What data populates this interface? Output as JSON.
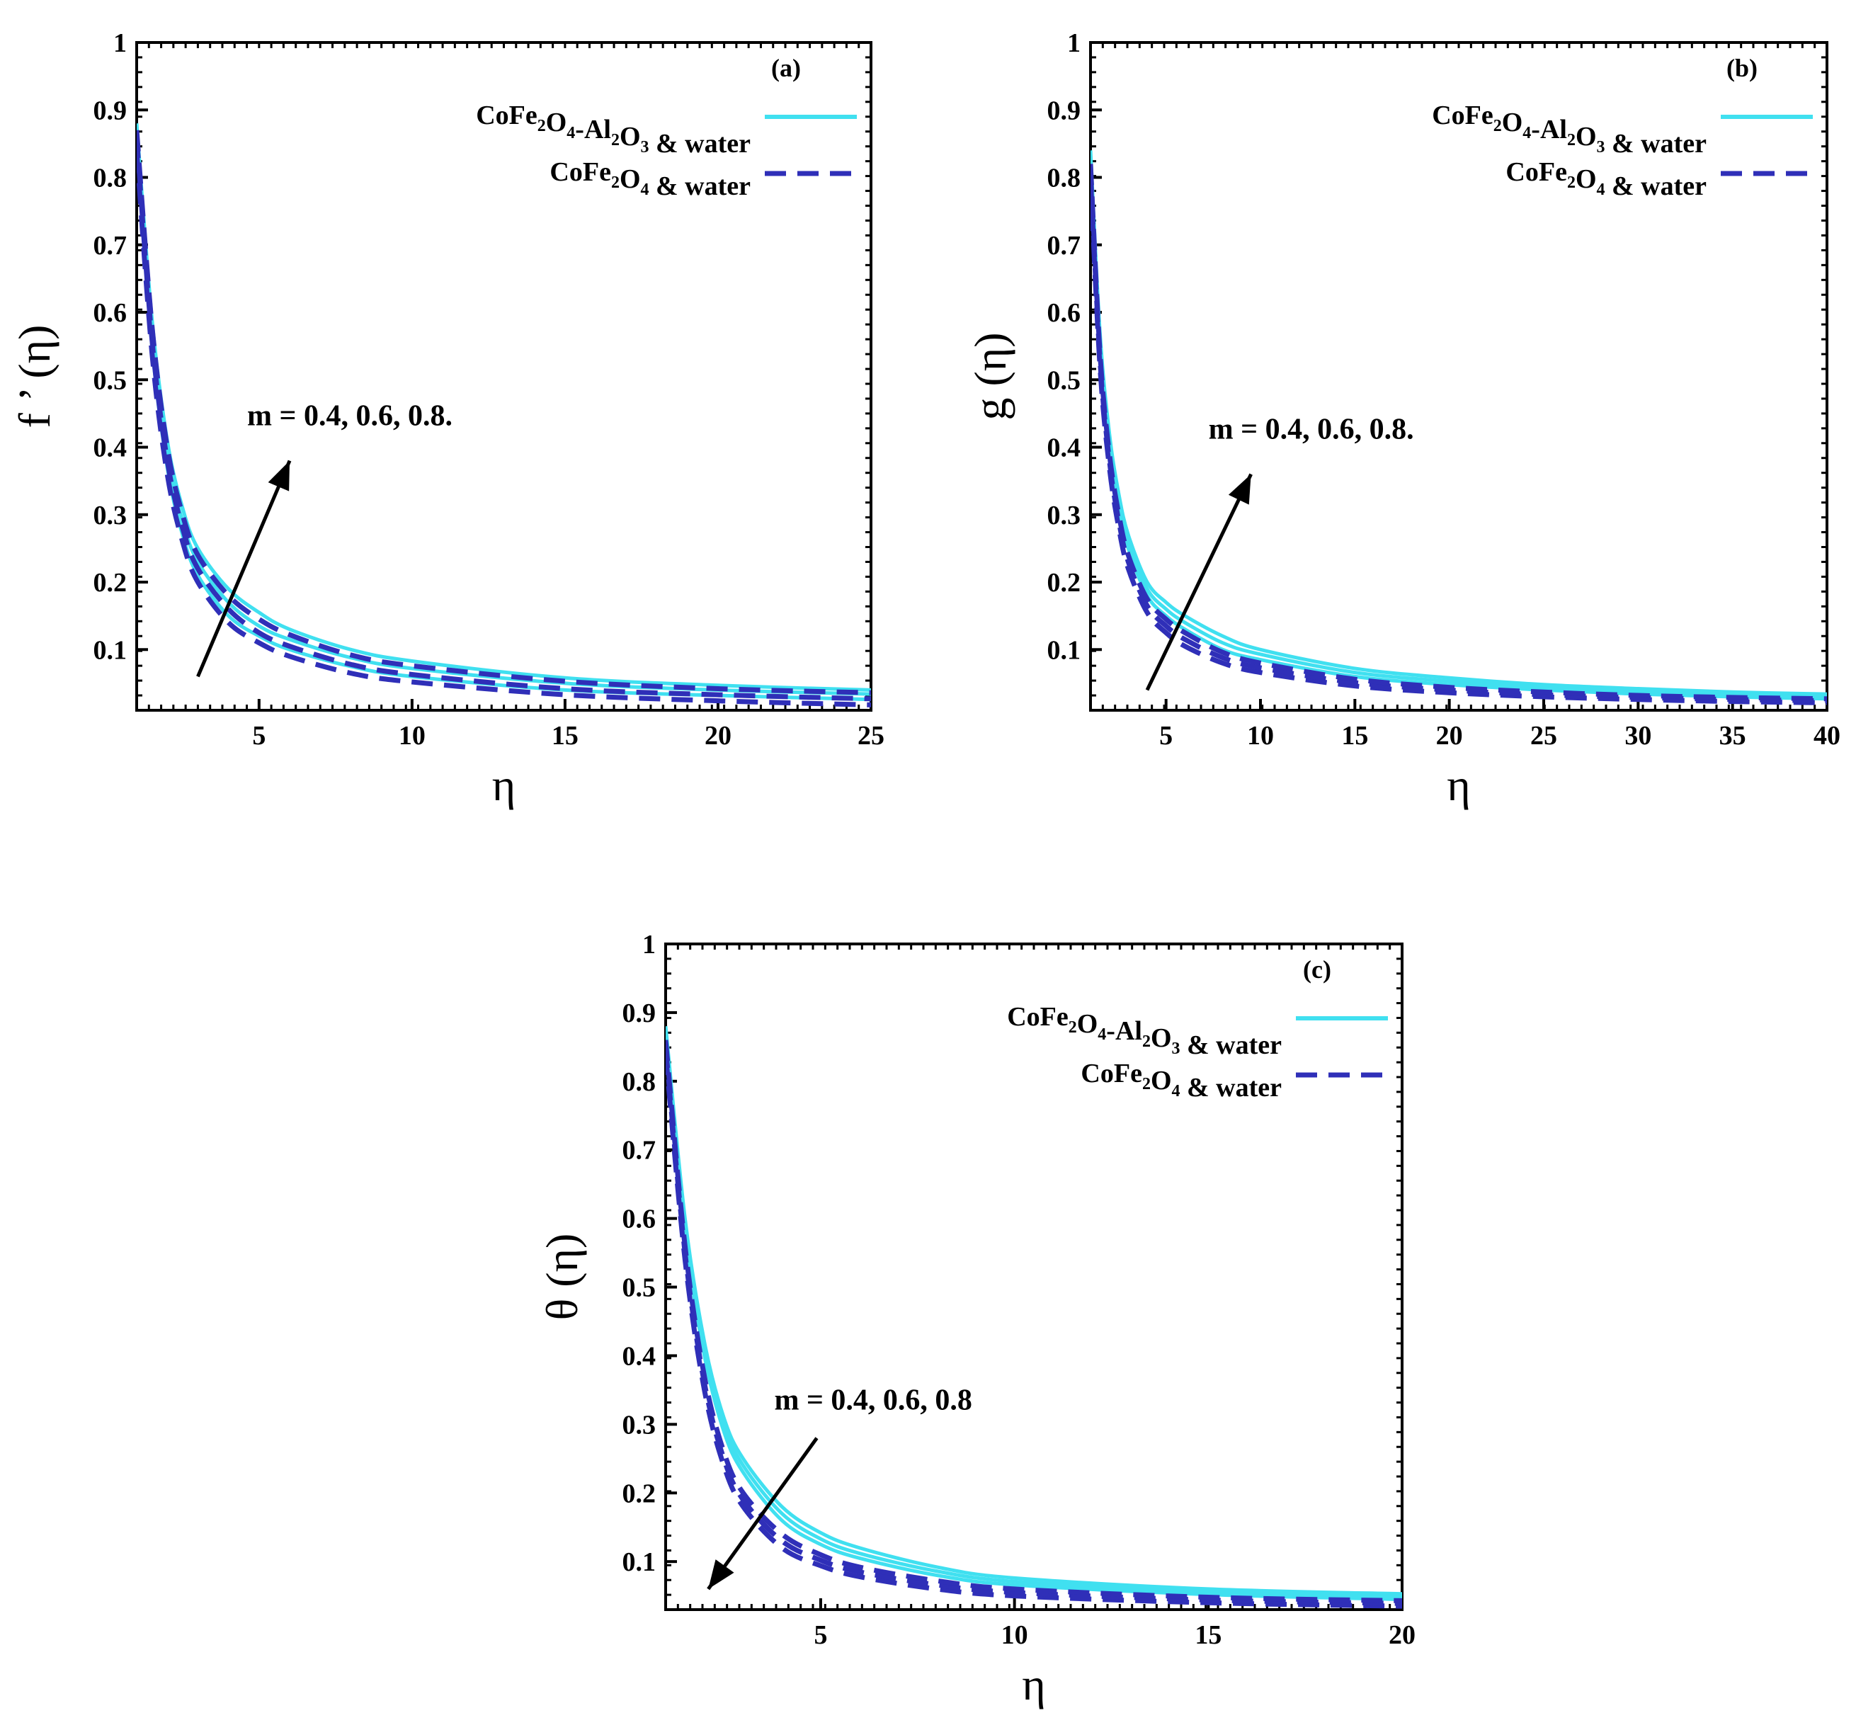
{
  "colors": {
    "hybrid": "#40e0f0",
    "mono": "#2f2fb8",
    "axis": "#000000"
  },
  "chart_data": [
    {
      "type": "line",
      "tag": "(a)",
      "xlabel": "η",
      "ylabel": "f ’ (η)",
      "xlim": [
        1,
        25
      ],
      "ylim": [
        0.01,
        1
      ],
      "xticks": [
        5,
        10,
        15,
        20,
        25
      ],
      "yticks": [
        0.1,
        0.2,
        0.3,
        0.4,
        0.5,
        0.6,
        0.7,
        0.8,
        0.9,
        1
      ],
      "grid": false,
      "legend_position": "top-right",
      "legend": [
        {
          "label": "CoFe",
          "sub1": "2",
          "mid1": "O",
          "sub2": "4",
          "tail": "-Al",
          "sub3": "2",
          "mid3": "O",
          "sub4": "3",
          "end": " & water",
          "style": "solid"
        },
        {
          "label": "CoFe",
          "sub1": "2",
          "mid1": "O",
          "sub2": "4",
          "tail": "",
          "sub3": "",
          "mid3": "",
          "sub4": "",
          "end": " & water",
          "style": "dashed"
        }
      ],
      "annotation": {
        "text": "m = 0.4, 0.6, 0.8.",
        "direction": "increase",
        "arrow_from": [
          3,
          0.06
        ],
        "arrow_to": [
          6,
          0.38
        ]
      },
      "series": [
        {
          "name": "CoFe2O4-Al2O3 & water",
          "m": 0.4,
          "style": "solid",
          "x": [
            1,
            1.5,
            2,
            2.5,
            3,
            4,
            5,
            6,
            8,
            10,
            15,
            20,
            25
          ],
          "y": [
            0.85,
            0.55,
            0.37,
            0.27,
            0.21,
            0.15,
            0.12,
            0.1,
            0.075,
            0.06,
            0.04,
            0.032,
            0.026
          ]
        },
        {
          "name": "CoFe2O4-Al2O3 & water",
          "m": 0.6,
          "style": "solid",
          "x": [
            1,
            1.5,
            2,
            2.5,
            3,
            4,
            5,
            6,
            8,
            10,
            15,
            20,
            25
          ],
          "y": [
            0.87,
            0.57,
            0.39,
            0.29,
            0.23,
            0.17,
            0.135,
            0.115,
            0.088,
            0.072,
            0.05,
            0.04,
            0.034
          ]
        },
        {
          "name": "CoFe2O4-Al2O3 & water",
          "m": 0.8,
          "style": "solid",
          "x": [
            1,
            1.5,
            2,
            2.5,
            3,
            4,
            5,
            6,
            8,
            10,
            15,
            20,
            25
          ],
          "y": [
            0.88,
            0.59,
            0.41,
            0.31,
            0.25,
            0.19,
            0.155,
            0.13,
            0.1,
            0.083,
            0.058,
            0.047,
            0.04
          ]
        },
        {
          "name": "CoFe2O4 & water",
          "m": 0.4,
          "style": "dashed",
          "x": [
            1,
            1.5,
            2,
            2.5,
            3,
            4,
            5,
            6,
            8,
            10,
            15,
            20,
            25
          ],
          "y": [
            0.84,
            0.54,
            0.36,
            0.26,
            0.2,
            0.14,
            0.11,
            0.09,
            0.065,
            0.052,
            0.033,
            0.024,
            0.018
          ]
        },
        {
          "name": "CoFe2O4 & water",
          "m": 0.6,
          "style": "dashed",
          "x": [
            1,
            1.5,
            2,
            2.5,
            3,
            4,
            5,
            6,
            8,
            10,
            15,
            20,
            25
          ],
          "y": [
            0.86,
            0.56,
            0.38,
            0.28,
            0.22,
            0.16,
            0.125,
            0.105,
            0.078,
            0.063,
            0.042,
            0.033,
            0.027
          ]
        },
        {
          "name": "CoFe2O4 & water",
          "m": 0.8,
          "style": "dashed",
          "x": [
            1,
            1.5,
            2,
            2.5,
            3,
            4,
            5,
            6,
            8,
            10,
            15,
            20,
            25
          ],
          "y": [
            0.87,
            0.58,
            0.4,
            0.3,
            0.24,
            0.18,
            0.145,
            0.122,
            0.092,
            0.076,
            0.053,
            0.042,
            0.036
          ]
        }
      ]
    },
    {
      "type": "line",
      "tag": "(b)",
      "xlabel": "η",
      "ylabel": "g (η)",
      "xlim": [
        1,
        40
      ],
      "ylim": [
        0.01,
        1
      ],
      "xticks": [
        5,
        10,
        15,
        20,
        25,
        30,
        35,
        40
      ],
      "yticks": [
        0.1,
        0.2,
        0.3,
        0.4,
        0.5,
        0.6,
        0.7,
        0.8,
        0.9,
        1
      ],
      "grid": false,
      "legend_position": "top-right",
      "legend": [
        {
          "label": "CoFe",
          "sub1": "2",
          "mid1": "O",
          "sub2": "4",
          "tail": "-Al",
          "sub3": "2",
          "mid3": "O",
          "sub4": "3",
          "end": " & water",
          "style": "solid"
        },
        {
          "label": "CoFe",
          "sub1": "2",
          "mid1": "O",
          "sub2": "4",
          "tail": "",
          "sub3": "",
          "mid3": "",
          "sub4": "",
          "end": " & water",
          "style": "dashed"
        }
      ],
      "annotation": {
        "text": "m = 0.4, 0.6, 0.8.",
        "direction": "increase",
        "arrow_from": [
          4,
          0.04
        ],
        "arrow_to": [
          9.5,
          0.36
        ]
      },
      "series": [
        {
          "name": "CoFe2O4-Al2O3 & water",
          "m": 0.4,
          "style": "solid",
          "x": [
            1,
            1.5,
            2,
            2.5,
            3,
            4,
            5,
            6,
            8,
            10,
            15,
            20,
            25,
            30,
            35,
            40
          ],
          "y": [
            0.82,
            0.55,
            0.4,
            0.31,
            0.25,
            0.18,
            0.15,
            0.13,
            0.1,
            0.085,
            0.06,
            0.048,
            0.04,
            0.034,
            0.03,
            0.027
          ]
        },
        {
          "name": "CoFe2O4-Al2O3 & water",
          "m": 0.6,
          "style": "solid",
          "x": [
            1,
            1.5,
            2,
            2.5,
            3,
            4,
            5,
            6,
            8,
            10,
            15,
            20,
            25,
            30,
            35,
            40
          ],
          "y": [
            0.83,
            0.56,
            0.41,
            0.32,
            0.26,
            0.19,
            0.16,
            0.14,
            0.11,
            0.093,
            0.066,
            0.053,
            0.044,
            0.038,
            0.034,
            0.031
          ]
        },
        {
          "name": "CoFe2O4-Al2O3 & water",
          "m": 0.8,
          "style": "solid",
          "x": [
            1,
            1.5,
            2,
            2.5,
            3,
            4,
            5,
            6,
            8,
            10,
            15,
            20,
            25,
            30,
            35,
            40
          ],
          "y": [
            0.84,
            0.57,
            0.42,
            0.33,
            0.27,
            0.2,
            0.17,
            0.15,
            0.12,
            0.1,
            0.072,
            0.058,
            0.048,
            0.042,
            0.037,
            0.034
          ]
        },
        {
          "name": "CoFe2O4 & water",
          "m": 0.4,
          "style": "dashed",
          "x": [
            1,
            1.5,
            2,
            2.5,
            3,
            4,
            5,
            6,
            8,
            10,
            15,
            20,
            25,
            30,
            35,
            40
          ],
          "y": [
            0.8,
            0.52,
            0.37,
            0.28,
            0.22,
            0.155,
            0.125,
            0.105,
            0.08,
            0.066,
            0.046,
            0.036,
            0.03,
            0.026,
            0.023,
            0.021
          ]
        },
        {
          "name": "CoFe2O4 & water",
          "m": 0.6,
          "style": "dashed",
          "x": [
            1,
            1.5,
            2,
            2.5,
            3,
            4,
            5,
            6,
            8,
            10,
            15,
            20,
            25,
            30,
            35,
            40
          ],
          "y": [
            0.81,
            0.53,
            0.38,
            0.29,
            0.23,
            0.165,
            0.135,
            0.115,
            0.088,
            0.073,
            0.051,
            0.04,
            0.033,
            0.029,
            0.026,
            0.024
          ]
        },
        {
          "name": "CoFe2O4 & water",
          "m": 0.8,
          "style": "dashed",
          "x": [
            1,
            1.5,
            2,
            2.5,
            3,
            4,
            5,
            6,
            8,
            10,
            15,
            20,
            25,
            30,
            35,
            40
          ],
          "y": [
            0.82,
            0.54,
            0.39,
            0.3,
            0.24,
            0.175,
            0.145,
            0.125,
            0.096,
            0.08,
            0.056,
            0.044,
            0.037,
            0.032,
            0.029,
            0.027
          ]
        }
      ]
    },
    {
      "type": "line",
      "tag": "(c)",
      "xlabel": "η",
      "ylabel": "θ (η)",
      "xlim": [
        1,
        20
      ],
      "ylim": [
        0.03,
        1
      ],
      "xticks": [
        5,
        10,
        15,
        20
      ],
      "yticks": [
        0.1,
        0.2,
        0.3,
        0.4,
        0.5,
        0.6,
        0.7,
        0.8,
        0.9,
        1
      ],
      "grid": false,
      "legend_position": "top-right",
      "legend": [
        {
          "label": "CoFe",
          "sub1": "2",
          "mid1": "O",
          "sub2": "4",
          "tail": "-Al",
          "sub3": "2",
          "mid3": "O",
          "sub4": "3",
          "end": " & water",
          "style": "solid"
        },
        {
          "label": "CoFe",
          "sub1": "2",
          "mid1": "O",
          "sub2": "4",
          "tail": "",
          "sub3": "",
          "mid3": "",
          "sub4": "",
          "end": " & water",
          "style": "dashed"
        }
      ],
      "annotation": {
        "text": "m = 0.4, 0.6, 0.8",
        "direction": "decrease",
        "arrow_from": [
          4.9,
          0.28
        ],
        "arrow_to": [
          2.1,
          0.06
        ]
      },
      "series": [
        {
          "name": "CoFe2O4-Al2O3 & water",
          "m": 0.4,
          "style": "solid",
          "x": [
            1,
            1.5,
            2,
            2.5,
            3,
            4,
            5,
            6,
            8,
            10,
            15,
            20
          ],
          "y": [
            0.86,
            0.58,
            0.4,
            0.29,
            0.23,
            0.16,
            0.125,
            0.105,
            0.08,
            0.066,
            0.052,
            0.045
          ]
        },
        {
          "name": "CoFe2O4-Al2O3 & water",
          "m": 0.6,
          "style": "solid",
          "x": [
            1,
            1.5,
            2,
            2.5,
            3,
            4,
            5,
            6,
            8,
            10,
            15,
            20
          ],
          "y": [
            0.87,
            0.59,
            0.41,
            0.3,
            0.24,
            0.17,
            0.133,
            0.112,
            0.086,
            0.071,
            0.056,
            0.049
          ]
        },
        {
          "name": "CoFe2O4-Al2O3 & water",
          "m": 0.8,
          "style": "solid",
          "x": [
            1,
            1.5,
            2,
            2.5,
            3,
            4,
            5,
            6,
            8,
            10,
            15,
            20
          ],
          "y": [
            0.88,
            0.6,
            0.42,
            0.31,
            0.25,
            0.18,
            0.142,
            0.12,
            0.092,
            0.076,
            0.06,
            0.053
          ]
        },
        {
          "name": "CoFe2O4 & water",
          "m": 0.4,
          "style": "dashed",
          "x": [
            1,
            1.5,
            2,
            2.5,
            3,
            4,
            5,
            6,
            8,
            10,
            15,
            20
          ],
          "y": [
            0.84,
            0.54,
            0.35,
            0.24,
            0.18,
            0.12,
            0.094,
            0.078,
            0.06,
            0.05,
            0.04,
            0.035
          ]
        },
        {
          "name": "CoFe2O4 & water",
          "m": 0.6,
          "style": "dashed",
          "x": [
            1,
            1.5,
            2,
            2.5,
            3,
            4,
            5,
            6,
            8,
            10,
            15,
            20
          ],
          "y": [
            0.85,
            0.55,
            0.36,
            0.25,
            0.19,
            0.13,
            0.102,
            0.085,
            0.066,
            0.055,
            0.044,
            0.039
          ]
        },
        {
          "name": "CoFe2O4 & water",
          "m": 0.8,
          "style": "dashed",
          "x": [
            1,
            1.5,
            2,
            2.5,
            3,
            4,
            5,
            6,
            8,
            10,
            15,
            20
          ],
          "y": [
            0.86,
            0.56,
            0.37,
            0.26,
            0.2,
            0.14,
            0.11,
            0.092,
            0.072,
            0.06,
            0.048,
            0.043
          ]
        }
      ]
    }
  ]
}
